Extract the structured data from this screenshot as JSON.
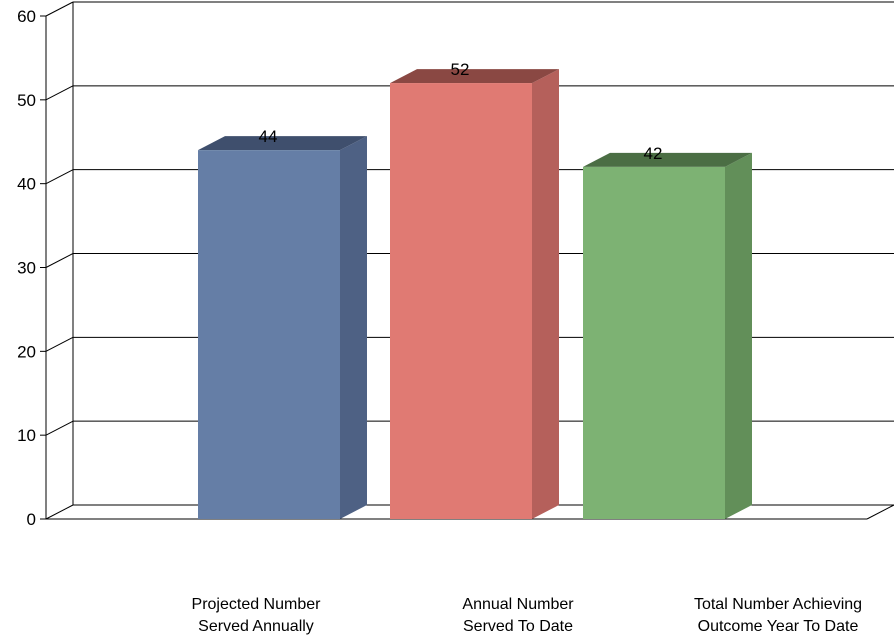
{
  "chart_data": {
    "type": "bar",
    "categories": [
      "Projected Number\nServed Annually",
      "Annual Number\nServed To Date",
      "Total Number Achieving\nOutcome Year To Date"
    ],
    "values": [
      44,
      52,
      42
    ],
    "data_labels": [
      "44",
      "52",
      "42"
    ],
    "ylim": [
      0,
      60
    ],
    "yticks": [
      0,
      10,
      20,
      30,
      40,
      50,
      60
    ],
    "ytick_labels": [
      "0",
      "10",
      "20",
      "30",
      "40",
      "50",
      "60"
    ],
    "grid": true,
    "style": "3d",
    "colors": [
      {
        "front": "#657ea6",
        "side": "#4e6184",
        "top": "#3f4f6d"
      },
      {
        "front": "#e07a73",
        "side": "#b5605b",
        "top": "#8a4843"
      },
      {
        "front": "#7db273",
        "side": "#628f59",
        "top": "#4b6e44"
      }
    ]
  }
}
